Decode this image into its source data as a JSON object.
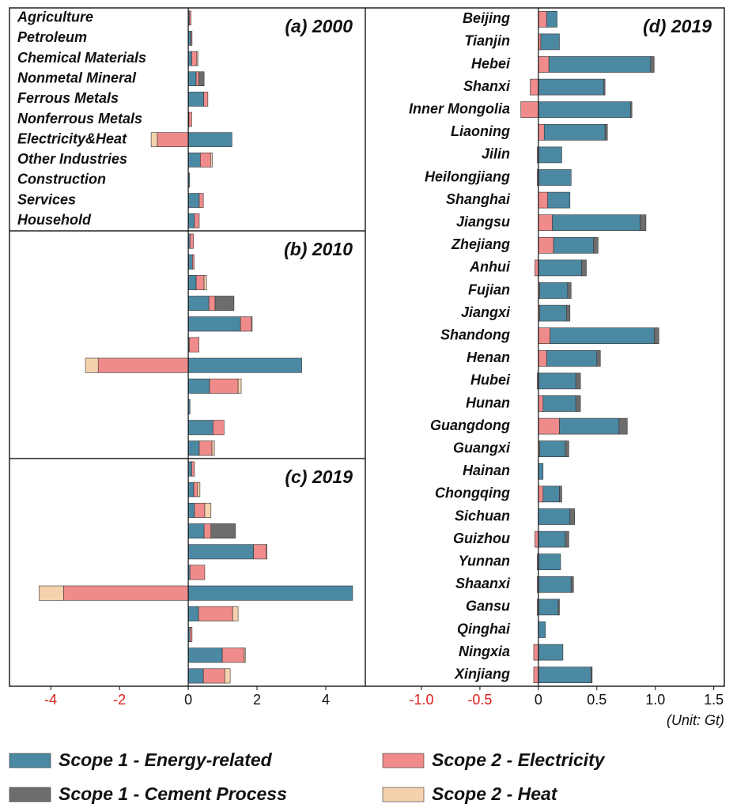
{
  "chart_data": [
    {
      "type": "bar",
      "title": "(a) 2000",
      "categories": [
        "Agriculture",
        "Petroleum",
        "Chemical Materials",
        "Nonmetal Mineral",
        "Ferrous Metals",
        "Nonferrous Metals",
        "Electricity&Heat",
        "Other Industries",
        "Construction",
        "Services",
        "Household"
      ],
      "series": [
        {
          "name": "Scope 1 - Energy-related",
          "color": "#4b88a2",
          "values": [
            0.03,
            0.08,
            0.1,
            0.23,
            0.45,
            0.02,
            1.27,
            0.35,
            0.04,
            0.32,
            0.18
          ]
        },
        {
          "name": "Scope 2  - Electricity",
          "color": "#f08b8b",
          "values": [
            0.05,
            0.03,
            0.15,
            0.08,
            0.12,
            0.08,
            -0.9,
            0.3,
            0,
            0.12,
            0.14
          ]
        },
        {
          "name": "Scope 2  - Heat",
          "color": "#f5d2ae",
          "values": [
            0,
            0,
            0.03,
            0,
            0,
            0,
            -0.18,
            0.05,
            0,
            0,
            0
          ]
        },
        {
          "name": "Scope 1 - Cement Process",
          "color": "#6d6d6d",
          "values": [
            0,
            0,
            0,
            0.15,
            0,
            0,
            0,
            0,
            0,
            0,
            0
          ]
        }
      ],
      "xlim": [
        -5.2,
        5.15
      ]
    },
    {
      "type": "bar",
      "title": "(b) 2010",
      "series": [
        {
          "color": "#4b88a2",
          "values": [
            0.05,
            0.12,
            0.23,
            0.6,
            1.52,
            0.03,
            3.3,
            0.62,
            0.05,
            0.72,
            0.32
          ]
        },
        {
          "color": "#f08b8b",
          "values": [
            0.1,
            0.05,
            0.23,
            0.18,
            0.32,
            0.28,
            -2.62,
            0.83,
            0,
            0.32,
            0.37
          ]
        },
        {
          "color": "#f5d2ae",
          "values": [
            0,
            0,
            0.07,
            0,
            0.02,
            0,
            -0.37,
            0.09,
            0,
            0,
            0.07
          ]
        },
        {
          "color": "#6d6d6d",
          "values": [
            0,
            0,
            0,
            0.55,
            0,
            0,
            0,
            0,
            0,
            0,
            0
          ]
        }
      ],
      "xlim": [
        -5.2,
        5.15
      ]
    },
    {
      "type": "bar",
      "title": "(c) 2019",
      "series": [
        {
          "color": "#4b88a2",
          "values": [
            0.1,
            0.16,
            0.18,
            0.46,
            1.9,
            0.05,
            4.78,
            0.3,
            0.05,
            0.99,
            0.44
          ]
        },
        {
          "color": "#f08b8b",
          "values": [
            0.08,
            0.11,
            0.3,
            0.2,
            0.37,
            0.43,
            -3.63,
            0.99,
            0.06,
            0.64,
            0.62
          ]
        },
        {
          "color": "#f5d2ae",
          "values": [
            0,
            0.07,
            0.18,
            0,
            0.02,
            0,
            -0.71,
            0.16,
            0,
            0.03,
            0.16
          ]
        },
        {
          "color": "#6d6d6d",
          "values": [
            0,
            0,
            0,
            0.71,
            0,
            0,
            0,
            0,
            0,
            0,
            0
          ]
        }
      ],
      "xlim": [
        -5.2,
        5.15
      ],
      "xticks": [
        -4,
        -2,
        0,
        2,
        4
      ]
    },
    {
      "type": "bar",
      "title": "(d) 2019",
      "categories": [
        "Beijing",
        "Tianjin",
        "Hebei",
        "Shanxi",
        "Inner Mongolia",
        "Liaoning",
        "Jilin",
        "Heilongjiang",
        "Shanghai",
        "Jiangsu",
        "Zhejiang",
        "Anhui",
        "Fujian",
        "Jiangxi",
        "Shandong",
        "Henan",
        "Hubei",
        "Hunan",
        "Guangdong",
        "Guangxi",
        "Hainan",
        "Chongqing",
        "Sichuan",
        "Guizhou",
        "Yunnan",
        "Shaanxi",
        "Gansu",
        "Qinghai",
        "Ningxia",
        "Xinjiang"
      ],
      "series": [
        {
          "color": "#f08b8b",
          "values": [
            0.07,
            0.02,
            0.09,
            -0.07,
            -0.15,
            0.05,
            -0.01,
            -0.01,
            0.08,
            0.12,
            0.13,
            -0.03,
            0.01,
            0.01,
            0.1,
            0.07,
            -0.01,
            0.04,
            0.18,
            0.01,
            0,
            0.04,
            0,
            -0.03,
            -0.01,
            -0.01,
            -0.01,
            0,
            -0.04,
            -0.04
          ]
        },
        {
          "color": "#4b88a2",
          "values": [
            0.09,
            0.16,
            0.87,
            0.56,
            0.79,
            0.52,
            0.2,
            0.28,
            0.19,
            0.75,
            0.34,
            0.37,
            0.24,
            0.23,
            0.89,
            0.43,
            0.32,
            0.28,
            0.51,
            0.22,
            0.04,
            0.14,
            0.27,
            0.23,
            0.19,
            0.28,
            0.17,
            0.06,
            0.21,
            0.45
          ]
        },
        {
          "color": "#6d6d6d",
          "values": [
            0,
            0,
            0.03,
            0.01,
            0.01,
            0.02,
            0,
            0,
            0,
            0.05,
            0.04,
            0.04,
            0.03,
            0.03,
            0.04,
            0.03,
            0.04,
            0.04,
            0.07,
            0.03,
            0,
            0.02,
            0.04,
            0.03,
            0,
            0.02,
            0.01,
            0,
            0,
            0.01
          ]
        }
      ],
      "xlim": [
        -1.48,
        1.59
      ],
      "xticks": [
        {
          "value": -1,
          "label": "-1.0"
        },
        -0.5,
        0,
        0.5,
        {
          "value": 1,
          "label": "1.0"
        },
        1.5
      ],
      "unit_label": "(Unit: Gt)"
    }
  ]
}
